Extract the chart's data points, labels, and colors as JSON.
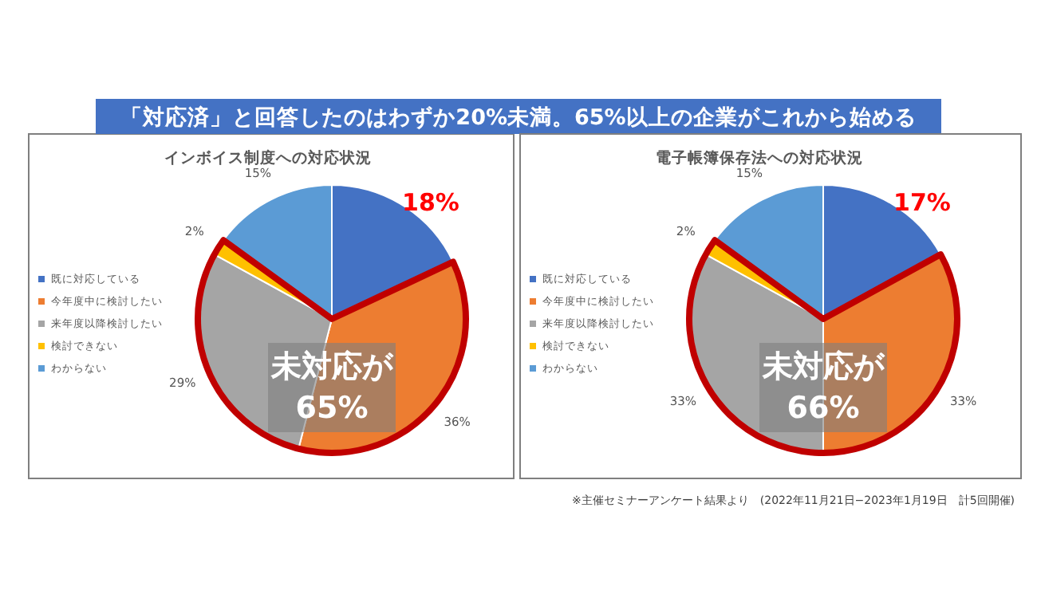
{
  "chart_data": [
    {
      "type": "pie",
      "title": "インボイス制度への対応状況",
      "categories": [
        "既に対応している",
        "今年度中に検討したい",
        "来年度以降検討したい",
        "検討できない",
        "わからない"
      ],
      "values": [
        18,
        36,
        29,
        2,
        15
      ],
      "value_labels": [
        "18%",
        "36%",
        "29%",
        "2%",
        "15%"
      ],
      "colors": [
        "#4472c4",
        "#ed7d31",
        "#a5a5a5",
        "#ffc000",
        "#5b9bd5"
      ],
      "legend": "left",
      "annotations": [
        "「対応済」と回答したのはわずか20%未満。65%以上の企業がこれから始める",
        "未対応が65%"
      ]
    },
    {
      "type": "pie",
      "title": "電子帳簿保存法への対応状況",
      "categories": [
        "既に対応している",
        "今年度中に検討したい",
        "来年度以降検討したい",
        "検討できない",
        "わからない"
      ],
      "values": [
        17,
        33,
        33,
        2,
        15
      ],
      "value_labels": [
        "17%",
        "33%",
        "33%",
        "2%",
        "15%"
      ],
      "colors": [
        "#4472c4",
        "#ed7d31",
        "#a5a5a5",
        "#ffc000",
        "#5b9bd5"
      ],
      "legend": "left",
      "annotations": [
        "未対応が66%",
        "※主催セミナーアンケート結果より　(2022年11月21日−2023年1月19日　計5回開催)"
      ]
    }
  ]
}
